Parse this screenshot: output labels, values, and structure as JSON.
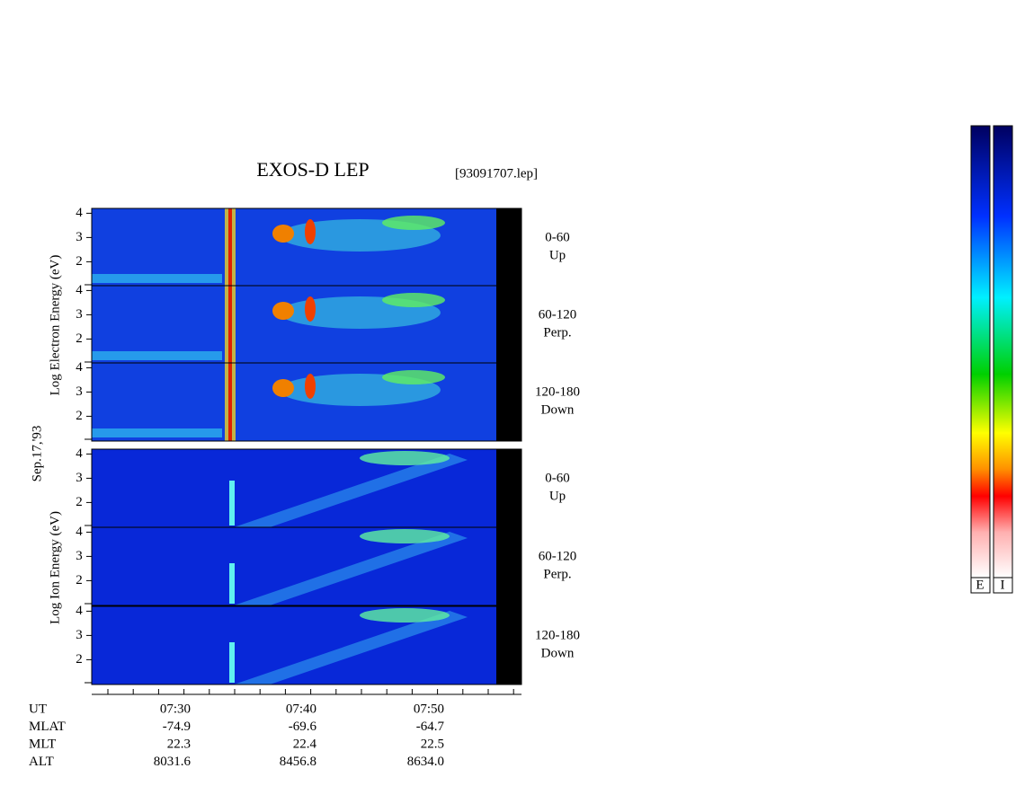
{
  "title": "EXOS-D LEP",
  "file": "[93091707.lep]",
  "date": "Sep.17,'93",
  "electron_axis_label": "Log  Electron  Energy (eV)",
  "ion_axis_label": "Log  Ion  Energy (eV)",
  "yticks": [
    4,
    3,
    2
  ],
  "pitch_panels": [
    {
      "range": "0-60",
      "dir": "Up"
    },
    {
      "range": "60-120",
      "dir": "Perp."
    },
    {
      "range": "120-180",
      "dir": "Down"
    }
  ],
  "rows": [
    {
      "label": "UT",
      "values": [
        "07:30",
        "07:40",
        "07:50"
      ]
    },
    {
      "label": "MLAT",
      "values": [
        "-74.9",
        "-69.6",
        "-64.7"
      ]
    },
    {
      "label": "MLT",
      "values": [
        "22.3",
        "22.4",
        "22.5"
      ]
    },
    {
      "label": "ALT",
      "values": [
        "8031.6",
        "8456.8",
        "8634.0"
      ]
    }
  ],
  "colorbar_labels": [
    "E",
    "I"
  ]
}
